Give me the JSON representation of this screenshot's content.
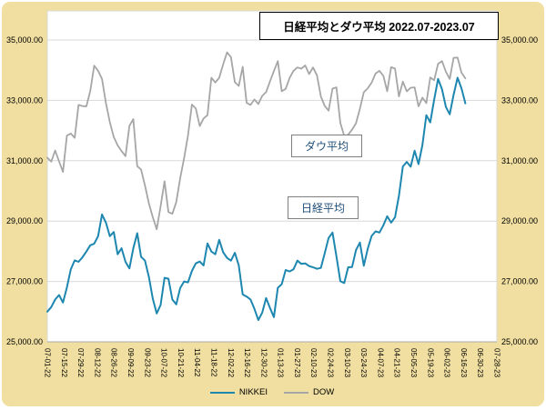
{
  "colors": {
    "panel_background": "#f0dfa1",
    "plot_background": "#ffffff",
    "gridline": "#d9d9d9",
    "nikkei_line": "#1d87b0",
    "dow_line": "#a6a6a6"
  },
  "title": "日経平均とダウ平均 2022.07-2023.07",
  "annotations": {
    "dow": "ダウ平均",
    "nikkei": "日経平均"
  },
  "legend": {
    "nikkei": "NIKKEI",
    "dow": "DOW"
  },
  "chart_data": {
    "type": "line",
    "title": "日経平均とダウ平均 2022.07-2023.07",
    "xlabel": "",
    "ylabel": "",
    "ylim": [
      25000,
      35000
    ],
    "grid": "horizontal",
    "legend_position": "bottom",
    "y_ticks": [
      {
        "value": 35000,
        "label": "35,000.00"
      },
      {
        "value": 33000,
        "label": "33,000.00"
      },
      {
        "value": 31000,
        "label": "31,000.00"
      },
      {
        "value": 29000,
        "label": "29,000.00"
      },
      {
        "value": 27000,
        "label": "27,000.00"
      },
      {
        "value": 25000,
        "label": "25,000.00"
      }
    ],
    "x_tick_labels": [
      "07-01-22",
      "07-15-22",
      "07-29-22",
      "08-12-22",
      "08-26-22",
      "09-09-22",
      "09-23-22",
      "10-07-22",
      "10-21-22",
      "11-04-22",
      "11-18-22",
      "12-02-22",
      "12-16-22",
      "12-30-22",
      "01-13-23",
      "01-27-23",
      "02-10-23",
      "02-24-23",
      "03-10-23",
      "03-24-23",
      "04-07-23",
      "04-21-23",
      "05-05-23",
      "05-19-23",
      "06-02-23",
      "06-16-23",
      "06-30-23",
      "07-28-23"
    ],
    "series": [
      {
        "name": "NIKKEI",
        "color": "#1d87b0",
        "values": [
          26000,
          26150,
          26400,
          26550,
          26300,
          26800,
          27400,
          27700,
          27650,
          27800,
          27990,
          28200,
          28250,
          28500,
          29220,
          28950,
          28500,
          28640,
          27900,
          28100,
          27650,
          27430,
          28100,
          28600,
          27820,
          27690,
          27150,
          26430,
          25940,
          26220,
          27120,
          27090,
          26400,
          26240,
          26780,
          27000,
          26970,
          27350,
          27600,
          27660,
          27530,
          28260,
          27990,
          27900,
          28380,
          27970,
          27780,
          27690,
          27950,
          27530,
          26570,
          26500,
          26400,
          26090,
          25720,
          25970,
          26450,
          26120,
          25820,
          26790,
          26910,
          27380,
          27330,
          27400,
          27690,
          27580,
          27600,
          27510,
          27470,
          27420,
          27450,
          27930,
          28440,
          28620,
          27830,
          27010,
          26950,
          27470,
          27480,
          28040,
          28290,
          27520,
          28080,
          28510,
          28660,
          28620,
          28860,
          29160,
          28950,
          29130,
          29840,
          30810,
          30960,
          30800,
          31330,
          30890,
          31520,
          32510,
          32270,
          33020,
          33710,
          33370,
          32780,
          32540,
          33190,
          33750,
          33400,
          32900
        ]
      },
      {
        "name": "DOW",
        "color": "#a6a6a6",
        "values": [
          31100,
          30970,
          31340,
          30980,
          30630,
          31830,
          31900,
          31760,
          32850,
          32810,
          32800,
          33310,
          34150,
          33980,
          33710,
          32910,
          32280,
          31790,
          31510,
          31320,
          31150,
          32150,
          32380,
          30820,
          30710,
          30180,
          29590,
          29130,
          28730,
          29490,
          30320,
          29300,
          29240,
          29630,
          30420,
          31080,
          31840,
          32860,
          32730,
          32150,
          32400,
          32510,
          33750,
          33590,
          33750,
          34190,
          34590,
          34430,
          33600,
          33480,
          34110,
          32920,
          32850,
          33030,
          32880,
          33150,
          33270,
          33630,
          33970,
          34300,
          33300,
          33380,
          33740,
          33980,
          34090,
          34050,
          34160,
          33870,
          34090,
          33830,
          33130,
          32820,
          32660,
          33390,
          33430,
          32250,
          31820,
          31860,
          32030,
          32240,
          32720,
          33270,
          33400,
          33590,
          33890,
          33980,
          33810,
          33300,
          34100,
          34050,
          33130,
          33620,
          33300,
          33420,
          33430,
          32800,
          33090,
          32910,
          33760,
          33670,
          34210,
          34300,
          33950,
          33710,
          34410,
          34420,
          33920,
          33730
        ]
      }
    ]
  }
}
